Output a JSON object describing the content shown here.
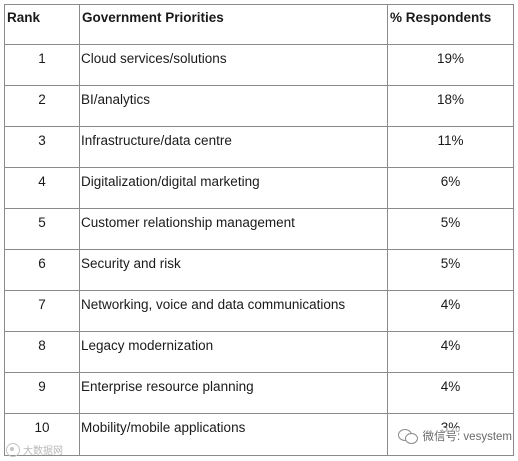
{
  "table": {
    "headers": {
      "rank": "Rank",
      "priority": "Government Priorities",
      "respondents": "% Respondents"
    },
    "rows": [
      {
        "rank": "1",
        "priority": "Cloud services/solutions",
        "respondents": "19%"
      },
      {
        "rank": "2",
        "priority": "BI/analytics",
        "respondents": "18%"
      },
      {
        "rank": "3",
        "priority": "Infrastructure/data centre",
        "respondents": "11%"
      },
      {
        "rank": "4",
        "priority": "Digitalization/digital marketing",
        "respondents": "6%"
      },
      {
        "rank": "5",
        "priority": "Customer relationship management",
        "respondents": "5%"
      },
      {
        "rank": "6",
        "priority": "Security and risk",
        "respondents": "5%"
      },
      {
        "rank": "7",
        "priority": "Networking, voice and data communications",
        "respondents": "4%"
      },
      {
        "rank": "8",
        "priority": "Legacy modernization",
        "respondents": "4%"
      },
      {
        "rank": "9",
        "priority": "Enterprise resource planning",
        "respondents": "4%"
      },
      {
        "rank": "10",
        "priority": "Mobility/mobile applications",
        "respondents": "3%"
      }
    ]
  },
  "watermarks": {
    "left_text": "大数据网",
    "right_text": "微信号: vesystem",
    "icons": {
      "left": "site-logo-icon",
      "right": "wechat-icon"
    }
  }
}
